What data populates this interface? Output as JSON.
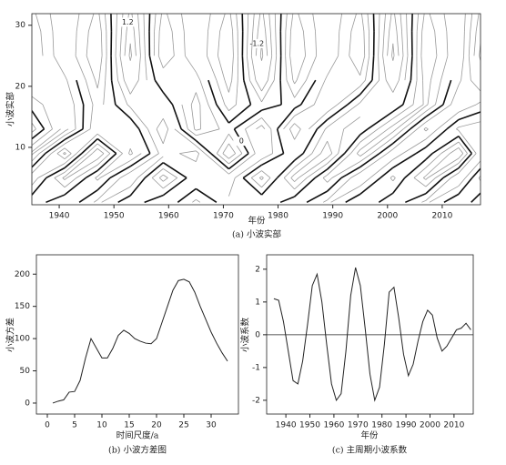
{
  "chart_data": [
    {
      "type": "contour",
      "x_label": "年份",
      "y_label": "小波实部",
      "caption": "(a) 小波实部",
      "x": [
        1935,
        1941,
        1947,
        1953,
        1959,
        1965,
        1971,
        1977,
        1983,
        1989,
        1995,
        2001,
        2007,
        2013,
        2017
      ],
      "y": [
        1,
        5,
        9,
        13,
        17,
        21,
        25,
        29,
        32
      ],
      "z": [
        [
          0.3,
          -0.4,
          0.5,
          -0.3,
          0.4,
          -0.5,
          0.3,
          0.4,
          -0.3,
          0.5,
          -0.4,
          0.3,
          -0.5,
          0.4,
          -0.3
        ],
        [
          -0.7,
          0.9,
          -0.5,
          0.8,
          -1.0,
          0.4,
          0.7,
          -0.9,
          1.0,
          -0.6,
          0.8,
          -0.5,
          0.9,
          -0.8,
          0.5
        ],
        [
          0.9,
          -1.3,
          1.2,
          -0.9,
          0.6,
          1.0,
          -1.2,
          0.8,
          -0.4,
          1.1,
          -1.0,
          0.7,
          -0.3,
          1.2,
          -0.8
        ],
        [
          -0.6,
          1.0,
          -0.8,
          -0.4,
          1.1,
          -0.9,
          -0.2,
          1.0,
          -1.1,
          0.5,
          0.3,
          -1.0,
          0.9,
          -0.5,
          -0.7
        ],
        [
          0.2,
          0.8,
          -0.6,
          0.5,
          0.4,
          -1.0,
          0.6,
          -0.3,
          0.2,
          -0.8,
          0.5,
          0.4,
          -0.9,
          0.8,
          0.3
        ],
        [
          0.8,
          0.5,
          -0.9,
          1.2,
          -0.4,
          -0.6,
          1.0,
          -1.2,
          0.9,
          -0.5,
          -0.7,
          1.2,
          -1.0,
          0.3,
          1.2
        ],
        [
          1.2,
          0,
          -1.2,
          1.7,
          -1.2,
          0,
          1.2,
          -1.7,
          1.2,
          0,
          -1.2,
          1.7,
          -1.2,
          0,
          1.7
        ],
        [
          1.1,
          0,
          -1.1,
          1.5,
          -1.1,
          0,
          1.1,
          -1.5,
          1.1,
          0,
          -1.1,
          1.5,
          -1.1,
          0,
          1.5
        ],
        [
          0.9,
          0,
          -0.9,
          1.3,
          -0.9,
          0,
          0.9,
          -1.3,
          0.9,
          0,
          -0.9,
          1.3,
          -0.9,
          0,
          1.3
        ]
      ],
      "levels": [
        -1.6,
        -1.2,
        -0.8,
        -0.4,
        0,
        0.4,
        0.8,
        1.2,
        1.6
      ],
      "labeled_levels": [
        -1.2,
        0,
        1.2
      ],
      "bold_level": 0,
      "xlim": [
        1935,
        2017
      ],
      "ylim": [
        0.6,
        31.9
      ],
      "xticks": [
        1940,
        1950,
        1960,
        1970,
        1980,
        1990,
        2000,
        2010
      ],
      "yticks": [
        10,
        20,
        30
      ]
    },
    {
      "type": "line",
      "x_label": "时间尺度/a",
      "y_label": "小波方差",
      "caption": "(b) 小波方差图",
      "color": "#222222",
      "x": [
        1,
        2,
        3,
        4,
        5,
        6,
        7,
        8,
        9,
        10,
        11,
        12,
        13,
        14,
        15,
        16,
        17,
        18,
        19,
        20,
        21,
        22,
        23,
        24,
        25,
        26,
        27,
        28,
        29,
        30,
        31,
        32,
        33
      ],
      "values": [
        0,
        3,
        5,
        17,
        18,
        35,
        70,
        100,
        85,
        70,
        70,
        85,
        105,
        113,
        108,
        100,
        96,
        93,
        92,
        100,
        125,
        150,
        175,
        190,
        192,
        188,
        172,
        150,
        130,
        110,
        93,
        78,
        65
      ],
      "xlim": [
        -2,
        35
      ],
      "ylim": [
        -17,
        230
      ],
      "xticks": [
        0,
        5,
        10,
        15,
        20,
        25,
        30
      ],
      "yticks": [
        0,
        50,
        100,
        150,
        200
      ]
    },
    {
      "type": "line",
      "x_label": "年份",
      "y_label": "小波系数",
      "caption": "(c) 主周期小波系数",
      "color": "#222222",
      "x": [
        1935,
        1937,
        1939,
        1941,
        1943,
        1945,
        1947,
        1949,
        1951,
        1953,
        1955,
        1957,
        1959,
        1961,
        1963,
        1965,
        1967,
        1969,
        1971,
        1973,
        1975,
        1977,
        1979,
        1981,
        1983,
        1985,
        1987,
        1989,
        1991,
        1993,
        1995,
        1997,
        1999,
        2001,
        2003,
        2005,
        2007,
        2009,
        2011,
        2013,
        2015,
        2017
      ],
      "values": [
        1.1,
        1.05,
        0.4,
        -0.5,
        -1.4,
        -1.5,
        -0.8,
        0.3,
        1.5,
        1.85,
        1.0,
        -0.3,
        -1.5,
        -2.0,
        -1.8,
        -0.5,
        1.2,
        2.05,
        1.5,
        0.2,
        -1.2,
        -2.0,
        -1.6,
        -0.3,
        1.3,
        1.45,
        0.5,
        -0.6,
        -1.25,
        -0.9,
        -0.2,
        0.4,
        0.75,
        0.6,
        -0.1,
        -0.5,
        -0.35,
        -0.1,
        0.15,
        0.2,
        0.35,
        0.15
      ],
      "hline": 0,
      "xlim": [
        1932,
        2018
      ],
      "ylim": [
        -2.42,
        2.44
      ],
      "xticks": [
        1940,
        1950,
        1960,
        1970,
        1980,
        1990,
        2000,
        2010
      ],
      "yticks": [
        -2,
        -1,
        0,
        1,
        2
      ]
    }
  ]
}
